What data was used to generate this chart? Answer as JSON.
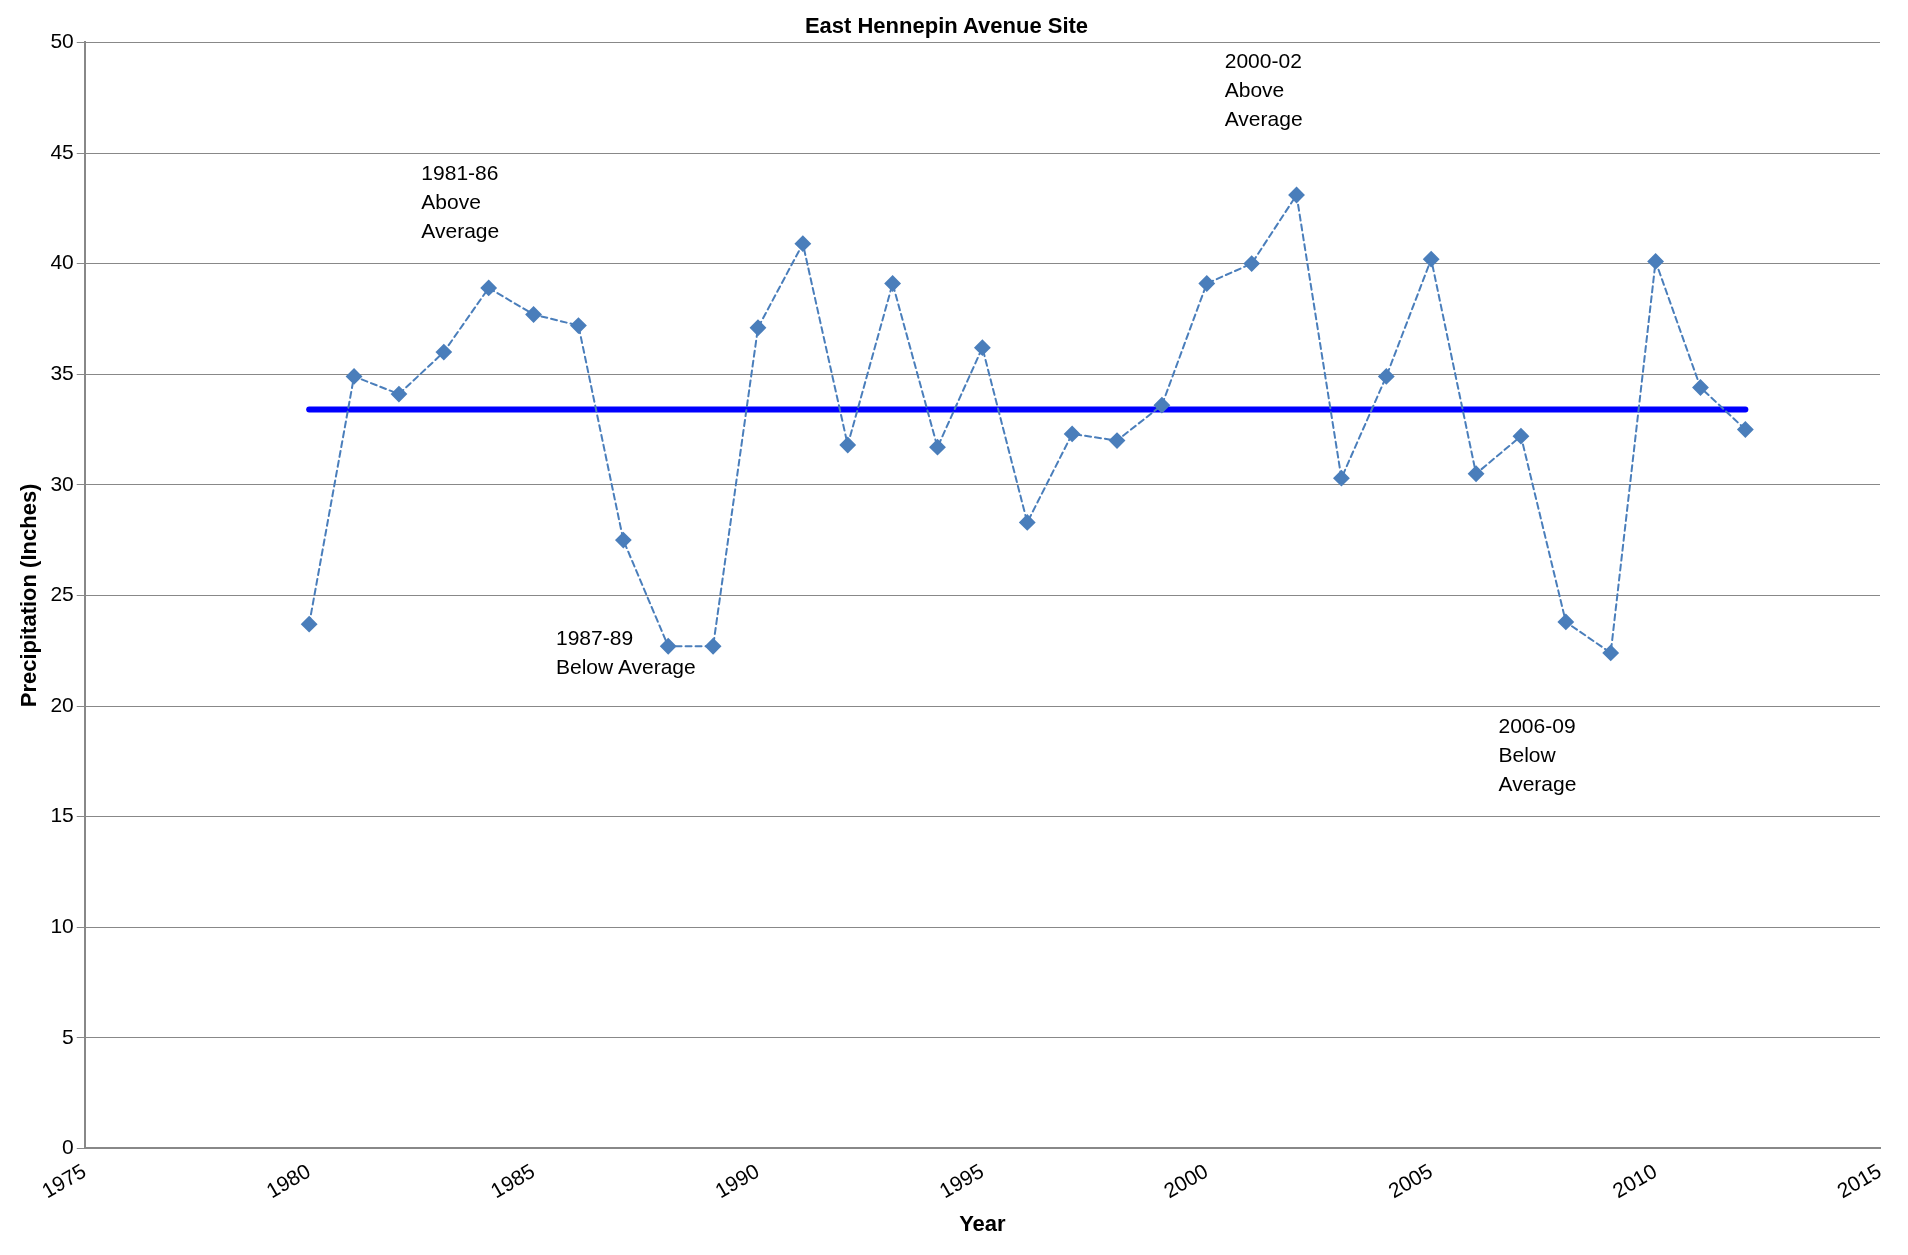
{
  "chart_data": {
    "type": "line",
    "title": "East Hennepin Avenue Site",
    "xlabel": "Year",
    "ylabel": "Precipitation (Inches)",
    "x": [
      1980,
      1981,
      1982,
      1983,
      1984,
      1985,
      1986,
      1987,
      1988,
      1989,
      1990,
      1991,
      1992,
      1993,
      1994,
      1995,
      1996,
      1997,
      1998,
      1999,
      2000,
      2001,
      2002,
      2003,
      2004,
      2005,
      2006,
      2007,
      2008,
      2009,
      2010,
      2011,
      2012
    ],
    "series": [
      {
        "color": "#4a7ebb",
        "marker": "diamond",
        "line_style": "dashed",
        "values": [
          23.7,
          34.9,
          34.1,
          36.0,
          38.9,
          37.7,
          37.2,
          27.5,
          22.7,
          22.7,
          37.1,
          40.9,
          31.8,
          39.1,
          31.7,
          36.2,
          28.3,
          32.3,
          32.0,
          33.6,
          39.1,
          40.0,
          43.1,
          30.3,
          34.9,
          40.2,
          30.5,
          32.2,
          23.8,
          22.4,
          40.1,
          34.4,
          32.5
        ]
      },
      {
        "color": "#0000ff",
        "marker": "none",
        "line_style": "solid",
        "x": [
          1980,
          2012
        ],
        "values": [
          33.4,
          33.4
        ]
      }
    ],
    "xlim": [
      1975,
      2015
    ],
    "xticks": [
      1975,
      1980,
      1985,
      1990,
      1995,
      2000,
      2005,
      2010,
      2015
    ],
    "ylim": [
      0,
      50
    ],
    "yticks": [
      0,
      5,
      10,
      15,
      20,
      25,
      30,
      35,
      40,
      45,
      50
    ],
    "grid": "y",
    "legend": false,
    "annotations": [
      "1981-86\nAbove\nAverage",
      "1987-89\nBelow Average",
      "2000-02\nAbove\nAverage",
      "2006-09\nBelow\nAverage"
    ]
  }
}
